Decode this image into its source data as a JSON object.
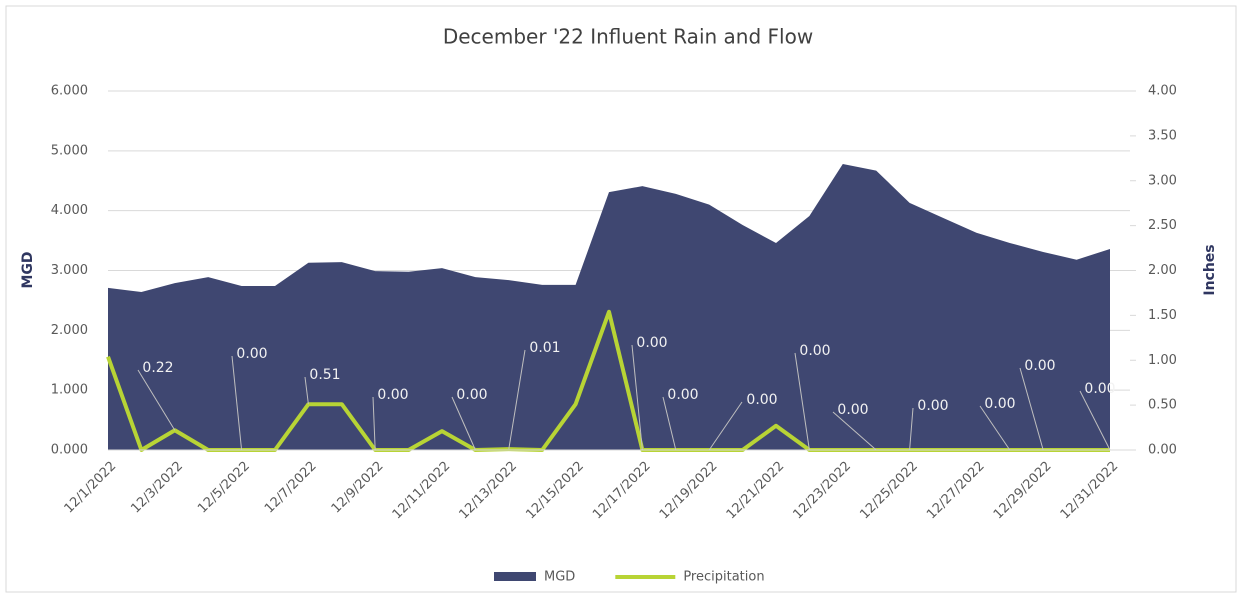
{
  "chart_data": {
    "type": "area_line",
    "title": "December '22 Influent Rain and Flow",
    "y_label": "MGD",
    "y2_label": "Inches",
    "categories": [
      "12/1/2022",
      null,
      "12/3/2022",
      null,
      "12/5/2022",
      null,
      "12/7/2022",
      null,
      "12/9/2022",
      null,
      "12/11/2022",
      null,
      "12/13/2022",
      null,
      "12/15/2022",
      null,
      "12/17/2022",
      null,
      "12/19/2022",
      null,
      "12/21/2022",
      null,
      "12/23/2022",
      null,
      "12/25/2022",
      null,
      "12/27/2022",
      null,
      "12/29/2022",
      null,
      "12/31/2022"
    ],
    "series": [
      {
        "name": "MGD",
        "color": "#3f4771",
        "kind": "area",
        "values": [
          2.71,
          2.64,
          2.79,
          2.89,
          2.74,
          2.74,
          3.13,
          3.14,
          2.99,
          2.98,
          3.04,
          2.89,
          2.84,
          2.76,
          2.76,
          4.31,
          4.41,
          4.28,
          4.1,
          3.76,
          3.46,
          3.91,
          4.78,
          4.67,
          4.13,
          3.88,
          3.63,
          3.46,
          3.31,
          3.18,
          3.36
        ]
      },
      {
        "name": "Precipitation",
        "color": "#b8d435",
        "kind": "line",
        "axis": "y2",
        "values": [
          1.04,
          0,
          0.22,
          0,
          0,
          0,
          0.51,
          0.51,
          0,
          0,
          0.21,
          0,
          0.01,
          0,
          0.51,
          1.54,
          0,
          0,
          0,
          0,
          0.27,
          0,
          0,
          0,
          0,
          0,
          0,
          0,
          0,
          0,
          0
        ],
        "value_labels": [
          null,
          null,
          "0.22",
          null,
          "0.00",
          null,
          "0.51",
          null,
          "0.00",
          null,
          null,
          "0.00",
          "0.01",
          null,
          null,
          null,
          "0.00",
          "0.00",
          "0.00",
          null,
          null,
          "0.00",
          null,
          "0.00",
          "0.00",
          null,
          null,
          "0.00",
          "0.00",
          null,
          "0.00"
        ]
      }
    ],
    "ylim": [
      0,
      6
    ],
    "yticks": [
      {
        "value": 0,
        "label": "0.000"
      },
      {
        "value": 1,
        "label": "1.000"
      },
      {
        "value": 2,
        "label": "2.000"
      },
      {
        "value": 3,
        "label": "3.000"
      },
      {
        "value": 4,
        "label": "4.000"
      },
      {
        "value": 5,
        "label": "5.000"
      },
      {
        "value": 6,
        "label": "6.000"
      }
    ],
    "y2lim": [
      0,
      4
    ],
    "y2ticks": [
      {
        "value": 0,
        "label": "0.00"
      },
      {
        "value": 0.5,
        "label": "0.50"
      },
      {
        "value": 1,
        "label": "1.00"
      },
      {
        "value": 1.5,
        "label": "1.50"
      },
      {
        "value": 2,
        "label": "2.00"
      },
      {
        "value": 2.5,
        "label": "2.50"
      },
      {
        "value": 3,
        "label": "3.00"
      },
      {
        "value": 3.5,
        "label": "3.50"
      },
      {
        "value": 4,
        "label": "4.00"
      }
    ],
    "grid": true,
    "legend": "bottom"
  }
}
